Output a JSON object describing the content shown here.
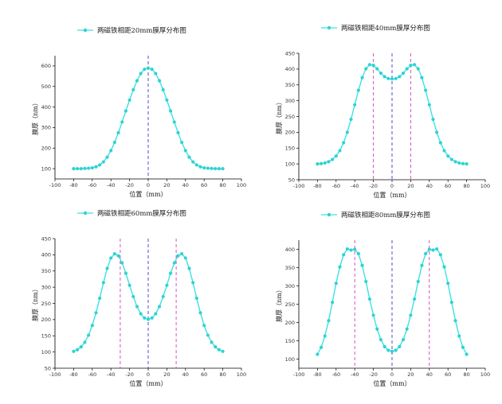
{
  "colors": {
    "series": "#3FE0E0",
    "marker": "#2ED3D3",
    "center_line": "#3A3AD0",
    "peak_line": "#D040C0",
    "axis": "#000000"
  },
  "chart_data": [
    {
      "type": "line",
      "title": "两磁铁相距20mm膜厚分布图",
      "xlabel": "位置（mm）",
      "ylabel": "膜厚（nm）",
      "xlim": [
        -100,
        100
      ],
      "ylim": [
        50,
        650
      ],
      "xticks": [
        -100,
        -80,
        -60,
        -40,
        -20,
        0,
        20,
        40,
        60,
        80,
        100
      ],
      "yticks": [
        100,
        200,
        300,
        400,
        500,
        600
      ],
      "x": [
        -80,
        -76,
        -72,
        -68,
        -64,
        -60,
        -56,
        -52,
        -48,
        -44,
        -40,
        -36,
        -32,
        -28,
        -24,
        -20,
        -16,
        -12,
        -8,
        -4,
        0,
        4,
        8,
        12,
        16,
        20,
        24,
        28,
        32,
        36,
        40,
        44,
        48,
        52,
        56,
        60,
        64,
        68,
        72,
        76,
        80
      ],
      "series": [
        {
          "values": [
            100,
            100,
            100,
            101,
            102,
            104,
            109,
            118,
            133,
            156,
            188,
            228,
            275,
            327,
            381,
            434,
            484,
            528,
            563,
            584,
            590,
            584,
            563,
            528,
            484,
            434,
            381,
            327,
            275,
            228,
            188,
            156,
            133,
            118,
            109,
            104,
            102,
            101,
            100,
            100,
            100
          ]
        }
      ],
      "vlines": [
        {
          "x": 0,
          "kind": "center"
        }
      ],
      "legend": "top-left"
    },
    {
      "type": "line",
      "title": "两磁铁相距40mm膜厚分布图",
      "xlabel": "位置（mm）",
      "ylabel": "膜厚（nm）",
      "xlim": [
        -100,
        100
      ],
      "ylim": [
        50,
        450
      ],
      "xticks": [
        -100,
        -80,
        -60,
        -40,
        -20,
        0,
        20,
        40,
        60,
        80,
        100
      ],
      "yticks": [
        50,
        100,
        150,
        200,
        250,
        300,
        350,
        400,
        450
      ],
      "x": [
        -80,
        -76,
        -72,
        -68,
        -64,
        -60,
        -56,
        -52,
        -48,
        -44,
        -40,
        -36,
        -32,
        -28,
        -24,
        -20,
        -16,
        -12,
        -8,
        -4,
        0,
        4,
        8,
        12,
        16,
        20,
        24,
        28,
        32,
        36,
        40,
        44,
        48,
        52,
        56,
        60,
        64,
        68,
        72,
        76,
        80
      ],
      "series": [
        {
          "values": [
            100,
            101,
            103,
            107,
            114,
            125,
            142,
            167,
            200,
            241,
            287,
            333,
            373,
            401,
            414,
            412,
            401,
            387,
            376,
            370,
            369,
            370,
            376,
            387,
            401,
            412,
            414,
            401,
            373,
            333,
            287,
            241,
            200,
            167,
            142,
            125,
            114,
            107,
            103,
            101,
            100
          ]
        }
      ],
      "vlines": [
        {
          "x": -20,
          "kind": "peak"
        },
        {
          "x": 0,
          "kind": "center"
        },
        {
          "x": 20,
          "kind": "peak"
        }
      ],
      "legend": "top-left"
    },
    {
      "type": "line",
      "title": "两磁铁相距60mm膜厚分布图",
      "xlabel": "位置（mm）",
      "ylabel": "膜厚（nm）",
      "xlim": [
        -100,
        100
      ],
      "ylim": [
        50,
        450
      ],
      "xticks": [
        -100,
        -80,
        -60,
        -40,
        -20,
        0,
        20,
        40,
        60,
        80,
        100
      ],
      "yticks": [
        50,
        100,
        150,
        200,
        250,
        300,
        350,
        400,
        450
      ],
      "x": [
        -80,
        -76,
        -72,
        -68,
        -64,
        -60,
        -56,
        -52,
        -48,
        -44,
        -40,
        -36,
        -32,
        -28,
        -24,
        -20,
        -16,
        -12,
        -8,
        -4,
        0,
        4,
        8,
        12,
        16,
        20,
        24,
        28,
        32,
        36,
        40,
        44,
        48,
        52,
        56,
        60,
        64,
        68,
        72,
        76,
        80
      ],
      "series": [
        {
          "values": [
            102,
            107,
            116,
            130,
            152,
            182,
            221,
            266,
            314,
            358,
            390,
            403,
            397,
            375,
            343,
            306,
            271,
            240,
            218,
            205,
            201,
            205,
            218,
            240,
            271,
            306,
            343,
            375,
            397,
            403,
            390,
            358,
            314,
            266,
            221,
            182,
            152,
            130,
            116,
            107,
            102
          ]
        }
      ],
      "vlines": [
        {
          "x": -30,
          "kind": "peak"
        },
        {
          "x": 0,
          "kind": "center"
        },
        {
          "x": 30,
          "kind": "peak"
        }
      ],
      "legend": "top-left"
    },
    {
      "type": "line",
      "title": "两磁铁相距80mm膜厚分布图",
      "xlabel": "位置（mm）",
      "ylabel": "膜厚（nm）",
      "xlim": [
        -100,
        100
      ],
      "ylim": [
        75,
        425
      ],
      "xticks": [
        -100,
        -80,
        -60,
        -40,
        -20,
        0,
        20,
        40,
        60,
        80,
        100
      ],
      "yticks": [
        100,
        150,
        200,
        250,
        300,
        350,
        400
      ],
      "x": [
        -80,
        -76,
        -72,
        -68,
        -64,
        -60,
        -56,
        -52,
        -48,
        -44,
        -40,
        -36,
        -32,
        -28,
        -24,
        -20,
        -16,
        -12,
        -8,
        -4,
        0,
        4,
        8,
        12,
        16,
        20,
        24,
        28,
        32,
        36,
        40,
        44,
        48,
        52,
        56,
        60,
        64,
        68,
        72,
        76,
        80
      ],
      "series": [
        {
          "values": [
            113,
            132,
            163,
            205,
            255,
            307,
            352,
            385,
            401,
            398,
            400,
            388,
            356,
            312,
            264,
            220,
            182,
            153,
            134,
            124,
            121,
            124,
            134,
            153,
            182,
            220,
            264,
            312,
            356,
            388,
            400,
            398,
            401,
            385,
            352,
            307,
            255,
            205,
            163,
            132,
            113
          ]
        }
      ],
      "vlines": [
        {
          "x": -40,
          "kind": "peak"
        },
        {
          "x": 0,
          "kind": "center"
        },
        {
          "x": 40,
          "kind": "peak"
        }
      ],
      "legend": "top-left"
    }
  ]
}
